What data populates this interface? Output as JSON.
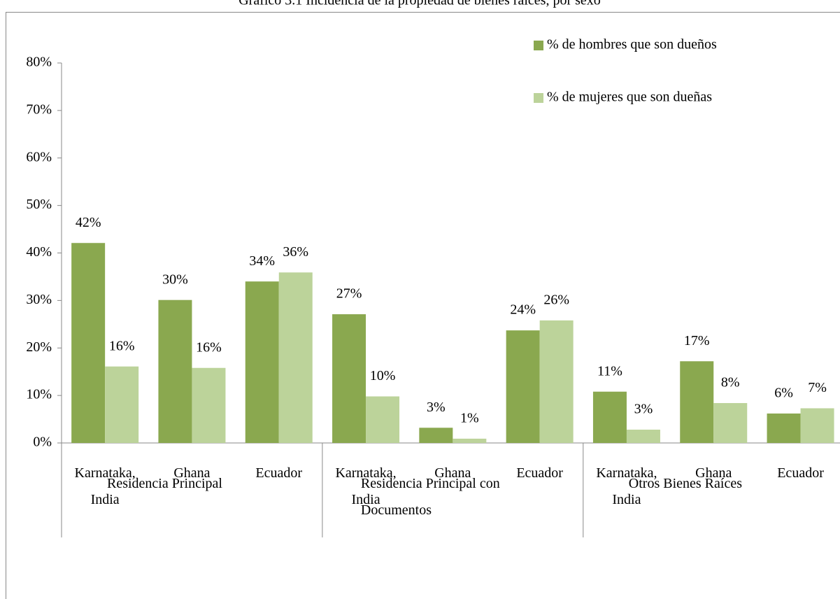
{
  "chart_data": {
    "type": "bar",
    "title": "Gráfico 3.1 Incidencia de la propiedad de bienes raíces, por sexo",
    "groups": [
      "Residencia Principal",
      "Residencia Principal con Documentos",
      "Otros Bienes Raíces"
    ],
    "categories": [
      "Karnataka, India",
      "Ghana",
      "Ecuador",
      "Karnataka, India",
      "Ghana",
      "Ecuador",
      "Karnataka, India",
      "Ghana",
      "Ecuador"
    ],
    "series": [
      {
        "name": "% de hombres que son dueños",
        "color": "#8aa84f",
        "values": [
          42.1,
          30.1,
          34,
          27.1,
          3.2,
          23.7,
          10.8,
          17.2,
          6.2
        ],
        "value_labels": [
          "42%",
          "30%",
          "34%",
          "27%",
          "3%",
          "24%",
          "11%",
          "17%",
          "6%"
        ]
      },
      {
        "name": "% de mujeres que son dueñas",
        "color": "#bcd39a",
        "values": [
          16.1,
          15.8,
          35.9,
          9.8,
          0.9,
          25.8,
          2.8,
          8.4,
          7.3
        ],
        "value_labels": [
          "16%",
          "16%",
          "36%",
          "10%",
          "1%",
          "26%",
          "3%",
          "8%",
          "7%"
        ]
      }
    ],
    "ylim": [
      0,
      80
    ],
    "yticks": [
      {
        "value": 0,
        "label": "0%"
      },
      {
        "value": 10,
        "label": "10%"
      },
      {
        "value": 20,
        "label": "20%"
      },
      {
        "value": 30,
        "label": "30%"
      },
      {
        "value": 40,
        "label": "40%"
      },
      {
        "value": 50,
        "label": "50%"
      },
      {
        "value": 60,
        "label": "60%"
      },
      {
        "value": 70,
        "label": "70%"
      },
      {
        "value": 80,
        "label": "80%"
      }
    ],
    "legend": "top-right"
  }
}
